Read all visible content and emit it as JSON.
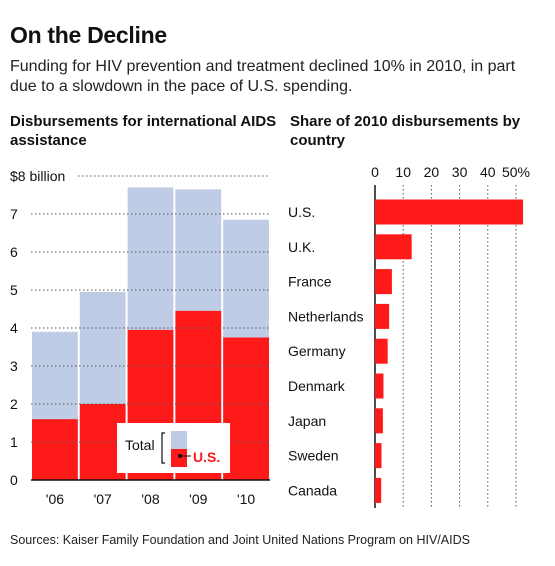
{
  "title": "On the Decline",
  "subtitle": "Funding for HIV prevention and treatment declined 10% in 2010, in part due to a slowdown in the pace of U.S. spending.",
  "source": "Sources: Kaiser Family Foundation and Joint United Nations Program on HIV/AIDS",
  "colors": {
    "total": "#bfcce6",
    "us": "#ff1a1a",
    "gridline": "#555555"
  },
  "chart_data": [
    {
      "type": "bar",
      "title": "Disbursements for international AIDS assistance",
      "categories": [
        "'06",
        "'07",
        "'08",
        "'09",
        "'10"
      ],
      "series": [
        {
          "name": "Total",
          "values": [
            3.9,
            4.95,
            7.7,
            7.65,
            6.85
          ]
        },
        {
          "name": "U.S.",
          "values": [
            1.6,
            2.0,
            3.95,
            4.45,
            3.75
          ]
        }
      ],
      "ylim": [
        0,
        8
      ],
      "yticks": [
        0,
        1,
        2,
        3,
        4,
        5,
        6,
        7,
        8
      ],
      "ytick_labels": [
        "0",
        "1",
        "2",
        "3",
        "4",
        "5",
        "6",
        "7",
        "$8 billion"
      ],
      "legend": {
        "position": "bottom-right",
        "total_label": "Total",
        "us_label": "U.S."
      },
      "grid": true
    },
    {
      "type": "bar",
      "orientation": "horizontal",
      "title": "Share of 2010 disbursements by country",
      "categories": [
        "U.S.",
        "U.K.",
        "France",
        "Netherlands",
        "Germany",
        "Denmark",
        "Japan",
        "Sweden",
        "Canada"
      ],
      "values": [
        52.5,
        13,
        6,
        5,
        4.5,
        3,
        2.8,
        2.3,
        2.2
      ],
      "xlim": [
        0,
        50
      ],
      "xticks": [
        0,
        10,
        20,
        30,
        40,
        50
      ],
      "xtick_labels": [
        "0",
        "10",
        "20",
        "30",
        "40",
        "50%"
      ],
      "grid": true
    }
  ]
}
